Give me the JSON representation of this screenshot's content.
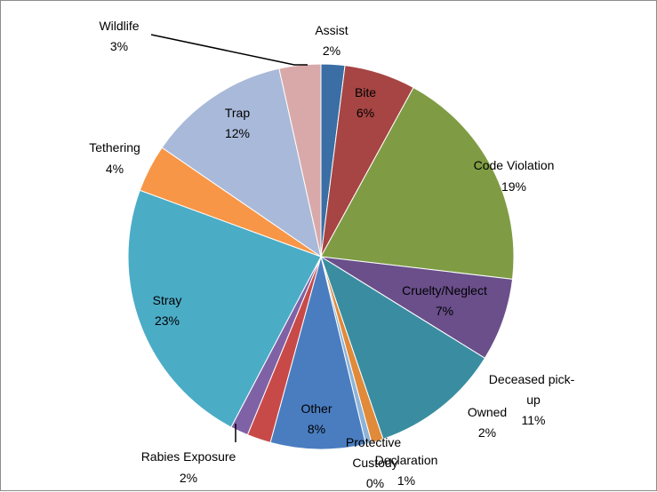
{
  "chart_data": {
    "type": "pie",
    "slices": [
      {
        "label": "Assist",
        "value_label": "2%",
        "value": 2,
        "color": "#3a6ea5"
      },
      {
        "label": "Bite",
        "value_label": "6%",
        "value": 6,
        "color": "#a64543"
      },
      {
        "label": "Code Violation",
        "value_label": "19%",
        "value": 19,
        "color": "#7f9c44"
      },
      {
        "label": "Cruelty/Neglect",
        "value_label": "7%",
        "value": 7,
        "color": "#6a4f8b"
      },
      {
        "label": "Deceased pick-up",
        "value_label": "11%",
        "value": 11,
        "color": "#3a8da1"
      },
      {
        "label": "Declaration",
        "value_label": "1%",
        "value": 1,
        "color": "#e08a3a"
      },
      {
        "label": "Protective Custody",
        "value_label": "0%",
        "value": 0.5,
        "color": "#8db3d9"
      },
      {
        "label": "Other",
        "value_label": "8%",
        "value": 8,
        "color": "#4a7dc0"
      },
      {
        "label": "Owned",
        "value_label": "2%",
        "value": 2,
        "color": "#c84a48"
      },
      {
        "label": "Rabies Exposure",
        "value_label": "2%",
        "value": 1.5,
        "color": "#7f62a6"
      },
      {
        "label": "Stray",
        "value_label": "23%",
        "value": 23,
        "color": "#4bacc6"
      },
      {
        "label": "Tethering",
        "value_label": "4%",
        "value": 4,
        "color": "#f79646"
      },
      {
        "label": "Trap",
        "value_label": "12%",
        "value": 12,
        "color": "#a9b9d9"
      },
      {
        "label": "Wildlife",
        "value_label": "3%",
        "value": 3.5,
        "color": "#d9a9a9"
      }
    ]
  }
}
